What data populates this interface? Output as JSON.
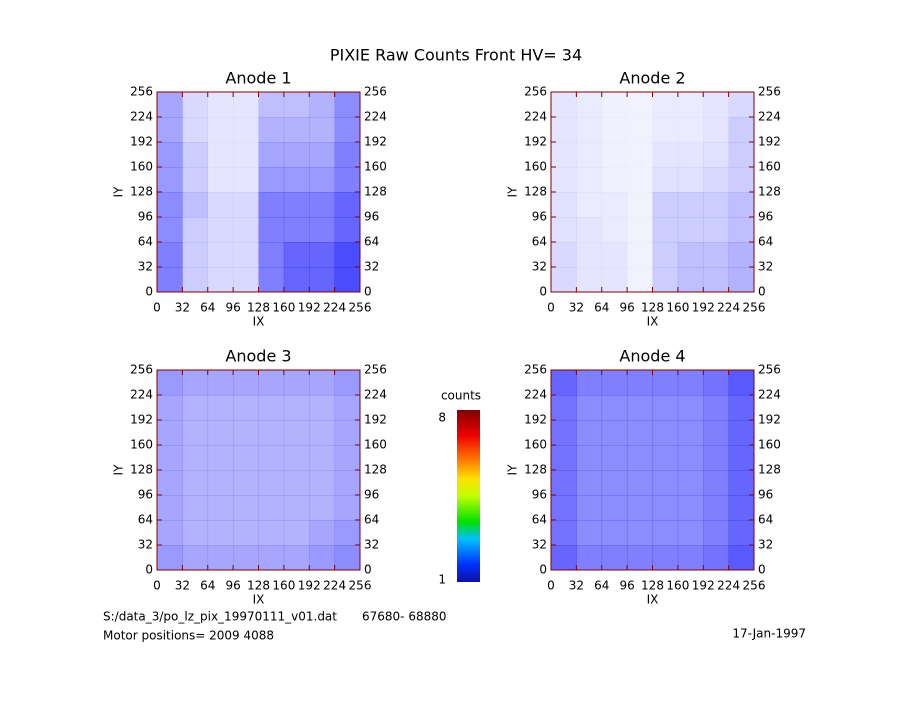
{
  "page": {
    "title": "PIXIE Raw Counts Front HV= 34",
    "file": "S:/data_3/po_lz_pix_19970111_v01.dat",
    "range": "67680- 68880",
    "motor": "Motor positions= 2009 4088",
    "date": "17-Jan-1997"
  },
  "colorbar": {
    "label": "counts",
    "clim": [
      1,
      8
    ],
    "ticks": [
      1,
      8
    ]
  },
  "chart_data": [
    {
      "type": "heatmap",
      "title": "Anode 1",
      "xlabel": "IX",
      "ylabel": "IY",
      "xlim": [
        0,
        256
      ],
      "ylim": [
        0,
        256
      ],
      "xticks": [
        0,
        32,
        64,
        96,
        128,
        160,
        192,
        224,
        256
      ],
      "yticks": [
        0,
        32,
        64,
        96,
        128,
        160,
        192,
        224,
        256
      ],
      "z": [
        [
          0.5,
          0.2,
          0.15,
          0.15,
          0.5,
          0.6,
          0.6,
          0.7
        ],
        [
          0.5,
          0.2,
          0.15,
          0.15,
          0.5,
          0.6,
          0.6,
          0.7
        ],
        [
          0.45,
          0.2,
          0.15,
          0.15,
          0.5,
          0.5,
          0.5,
          0.6
        ],
        [
          0.45,
          0.25,
          0.15,
          0.15,
          0.5,
          0.5,
          0.5,
          0.6
        ],
        [
          0.4,
          0.2,
          0.1,
          0.1,
          0.4,
          0.4,
          0.4,
          0.5
        ],
        [
          0.4,
          0.2,
          0.1,
          0.1,
          0.35,
          0.35,
          0.35,
          0.5
        ],
        [
          0.35,
          0.15,
          0.1,
          0.1,
          0.3,
          0.3,
          0.3,
          0.45
        ],
        [
          0.35,
          0.15,
          0.1,
          0.1,
          0.25,
          0.25,
          0.3,
          0.45
        ]
      ]
    },
    {
      "type": "heatmap",
      "title": "Anode 2",
      "xlabel": "IX",
      "ylabel": "IY",
      "xlim": [
        0,
        256
      ],
      "ylim": [
        0,
        256
      ],
      "xticks": [
        0,
        32,
        64,
        96,
        128,
        160,
        192,
        224,
        256
      ],
      "yticks": [
        0,
        32,
        64,
        96,
        128,
        160,
        192,
        224,
        256
      ],
      "z": [
        [
          0.15,
          0.1,
          0.1,
          0.05,
          0.2,
          0.25,
          0.25,
          0.3
        ],
        [
          0.15,
          0.1,
          0.1,
          0.05,
          0.2,
          0.25,
          0.25,
          0.3
        ],
        [
          0.12,
          0.1,
          0.08,
          0.05,
          0.2,
          0.2,
          0.2,
          0.25
        ],
        [
          0.12,
          0.08,
          0.08,
          0.05,
          0.2,
          0.2,
          0.2,
          0.25
        ],
        [
          0.1,
          0.08,
          0.06,
          0.05,
          0.12,
          0.12,
          0.15,
          0.2
        ],
        [
          0.1,
          0.08,
          0.06,
          0.05,
          0.1,
          0.1,
          0.12,
          0.2
        ],
        [
          0.1,
          0.08,
          0.06,
          0.05,
          0.08,
          0.08,
          0.1,
          0.2
        ],
        [
          0.1,
          0.08,
          0.06,
          0.05,
          0.08,
          0.08,
          0.1,
          0.15
        ]
      ]
    },
    {
      "type": "heatmap",
      "title": "Anode 3",
      "xlabel": "IX",
      "ylabel": "IY",
      "xlim": [
        0,
        256
      ],
      "ylim": [
        0,
        256
      ],
      "xticks": [
        0,
        32,
        64,
        96,
        128,
        160,
        192,
        224,
        256
      ],
      "yticks": [
        0,
        32,
        64,
        96,
        128,
        160,
        192,
        224,
        256
      ],
      "z": [
        [
          0.4,
          0.35,
          0.35,
          0.35,
          0.35,
          0.35,
          0.4,
          0.45
        ],
        [
          0.35,
          0.3,
          0.3,
          0.3,
          0.3,
          0.3,
          0.35,
          0.4
        ],
        [
          0.35,
          0.3,
          0.3,
          0.3,
          0.3,
          0.3,
          0.3,
          0.35
        ],
        [
          0.35,
          0.3,
          0.3,
          0.3,
          0.3,
          0.3,
          0.3,
          0.35
        ],
        [
          0.35,
          0.3,
          0.3,
          0.3,
          0.3,
          0.3,
          0.3,
          0.35
        ],
        [
          0.35,
          0.3,
          0.3,
          0.3,
          0.3,
          0.3,
          0.3,
          0.35
        ],
        [
          0.35,
          0.3,
          0.3,
          0.3,
          0.3,
          0.3,
          0.3,
          0.35
        ],
        [
          0.4,
          0.35,
          0.35,
          0.35,
          0.35,
          0.35,
          0.35,
          0.4
        ]
      ]
    },
    {
      "type": "heatmap",
      "title": "Anode 4",
      "xlabel": "IX",
      "ylabel": "IY",
      "xlim": [
        0,
        256
      ],
      "ylim": [
        0,
        256
      ],
      "xticks": [
        0,
        32,
        64,
        96,
        128,
        160,
        192,
        224,
        256
      ],
      "yticks": [
        0,
        32,
        64,
        96,
        128,
        160,
        192,
        224,
        256
      ],
      "z": [
        [
          0.6,
          0.5,
          0.5,
          0.5,
          0.5,
          0.5,
          0.55,
          0.65
        ],
        [
          0.55,
          0.45,
          0.45,
          0.45,
          0.45,
          0.45,
          0.5,
          0.6
        ],
        [
          0.55,
          0.45,
          0.45,
          0.45,
          0.45,
          0.45,
          0.5,
          0.6
        ],
        [
          0.55,
          0.45,
          0.45,
          0.45,
          0.45,
          0.45,
          0.5,
          0.6
        ],
        [
          0.55,
          0.45,
          0.45,
          0.45,
          0.45,
          0.45,
          0.5,
          0.6
        ],
        [
          0.55,
          0.45,
          0.45,
          0.45,
          0.45,
          0.45,
          0.5,
          0.6
        ],
        [
          0.55,
          0.45,
          0.45,
          0.45,
          0.45,
          0.45,
          0.5,
          0.6
        ],
        [
          0.6,
          0.5,
          0.5,
          0.5,
          0.5,
          0.5,
          0.55,
          0.65
        ]
      ]
    }
  ]
}
